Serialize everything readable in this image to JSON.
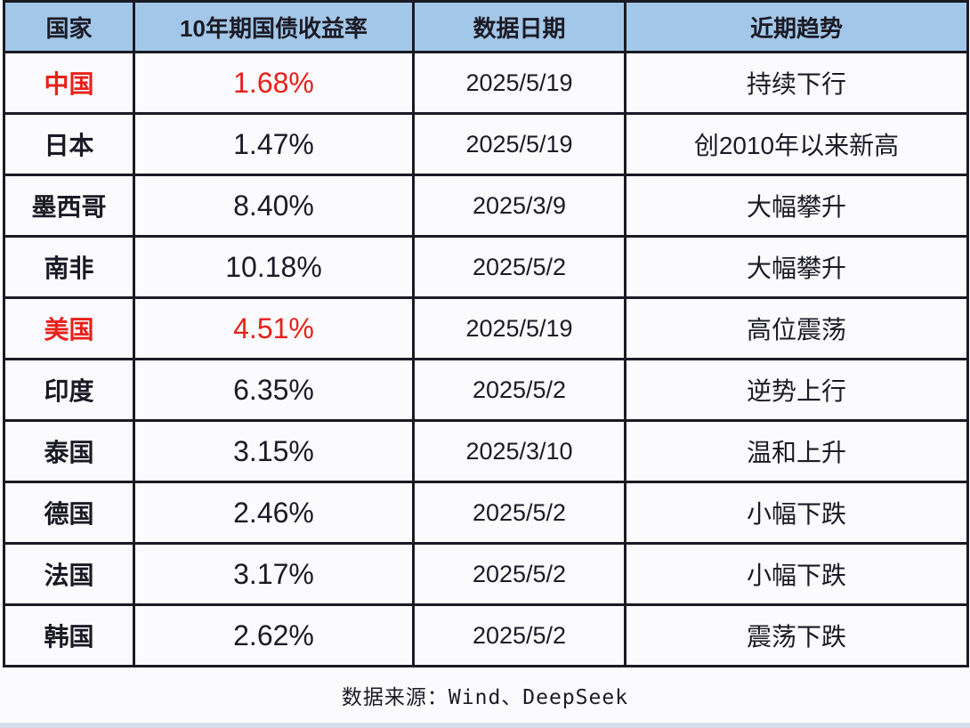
{
  "chart_data": {
    "type": "table",
    "columns": [
      "国家",
      "10年期国债收益率",
      "数据日期",
      "近期趋势"
    ],
    "rows": [
      [
        "中国",
        "1.68%",
        "2025/5/19",
        "持续下行"
      ],
      [
        "日本",
        "1.47%",
        "2025/5/19",
        "创2010年以来新高"
      ],
      [
        "墨西哥",
        "8.40%",
        "2025/3/9",
        "大幅攀升"
      ],
      [
        "南非",
        "10.18%",
        "2025/5/2",
        "大幅攀升"
      ],
      [
        "美国",
        "4.51%",
        "2025/5/19",
        "高位震荡"
      ],
      [
        "印度",
        "6.35%",
        "2025/5/2",
        "逆势上行"
      ],
      [
        "泰国",
        "3.15%",
        "2025/3/10",
        "温和上升"
      ],
      [
        "德国",
        "2.46%",
        "2025/5/2",
        "小幅下跌"
      ],
      [
        "法国",
        "3.17%",
        "2025/5/2",
        "小幅下跌"
      ],
      [
        "韩国",
        "2.62%",
        "2025/5/2",
        "震荡下跌"
      ]
    ],
    "yields_numeric": [
      1.68,
      1.47,
      8.4,
      10.18,
      4.51,
      6.35,
      3.15,
      2.46,
      3.17,
      2.62
    ],
    "highlighted_rows": [
      0,
      4
    ],
    "source": "数据来源：Wind、DeepSeek"
  },
  "colors": {
    "header_bg": "#a3c7e8",
    "border": "#1a1a24",
    "highlight_red": "#e8201a",
    "cell_bg": "#fbfafc",
    "bottom_strip": "#d8dee9"
  }
}
